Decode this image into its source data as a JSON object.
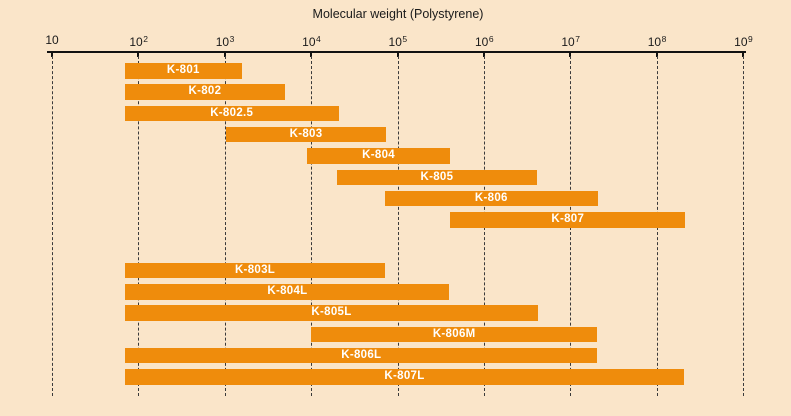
{
  "title": "Molecular weight (Polystyrene)",
  "chart_data": {
    "type": "bar",
    "subtype": "horizontal-log-range-bars",
    "xlabel": "Molecular weight (Polystyrene)",
    "x_scale": "log10",
    "x_min": 10,
    "x_max": 1000000000,
    "grid": "dashed-vertical-per-decade",
    "legend": "none",
    "axis_ticks": [
      {
        "log": 1,
        "base": "10",
        "exp": ""
      },
      {
        "log": 2,
        "base": "10",
        "exp": "2"
      },
      {
        "log": 3,
        "base": "10",
        "exp": "3"
      },
      {
        "log": 4,
        "base": "10",
        "exp": "4"
      },
      {
        "log": 5,
        "base": "10",
        "exp": "5"
      },
      {
        "log": 6,
        "base": "10",
        "exp": "6"
      },
      {
        "log": 7,
        "base": "10",
        "exp": "7"
      },
      {
        "log": 8,
        "base": "10",
        "exp": "8"
      },
      {
        "log": 9,
        "base": "10",
        "exp": "9"
      }
    ],
    "groups": [
      {
        "name": "upper-group",
        "bars": [
          {
            "label": "K-801",
            "mw_min": 70,
            "mw_max": 1500,
            "log_min": 1.84,
            "log_max": 3.2
          },
          {
            "label": "K-802",
            "mw_min": 70,
            "mw_max": 5000,
            "log_min": 1.84,
            "log_max": 3.7
          },
          {
            "label": "K-802.5",
            "mw_min": 70,
            "mw_max": 20000,
            "log_min": 1.84,
            "log_max": 4.32
          },
          {
            "label": "K-803",
            "mw_min": 1000,
            "mw_max": 70000,
            "log_min": 3.01,
            "log_max": 4.87
          },
          {
            "label": "K-804",
            "mw_min": 9000,
            "mw_max": 400000,
            "log_min": 3.95,
            "log_max": 5.61
          },
          {
            "label": "K-805",
            "mw_min": 20000,
            "mw_max": 4000000,
            "log_min": 4.3,
            "log_max": 6.61
          },
          {
            "label": "K-806",
            "mw_min": 70000,
            "mw_max": 20000000,
            "log_min": 4.85,
            "log_max": 7.32
          },
          {
            "label": "K-807",
            "mw_min": 400000,
            "mw_max": 200000000,
            "log_min": 5.61,
            "log_max": 8.33
          }
        ]
      },
      {
        "name": "lower-group",
        "bars": [
          {
            "label": "K-803L",
            "mw_min": 70,
            "mw_max": 70000,
            "log_min": 1.85,
            "log_max": 4.85
          },
          {
            "label": "K-804L",
            "mw_min": 70,
            "mw_max": 400000,
            "log_min": 1.85,
            "log_max": 5.6
          },
          {
            "label": "K-805L",
            "mw_min": 70,
            "mw_max": 4000000,
            "log_min": 1.85,
            "log_max": 6.62
          },
          {
            "label": "K-806M",
            "mw_min": 10000,
            "mw_max": 20000000,
            "log_min": 4.0,
            "log_max": 7.31
          },
          {
            "label": "K-806L",
            "mw_min": 70,
            "mw_max": 20000000,
            "log_min": 1.85,
            "log_max": 7.31
          },
          {
            "label": "K-807L",
            "mw_min": 70,
            "mw_max": 200000000,
            "log_min": 1.85,
            "log_max": 8.31
          }
        ]
      }
    ]
  },
  "colors": {
    "background": "#fae5c9",
    "bar": "#ef8c0c",
    "bar_label": "#ffffff",
    "axis_text": "#1a1a1a",
    "axis_line": "#111111",
    "grid_line": "#3a3a3a"
  }
}
